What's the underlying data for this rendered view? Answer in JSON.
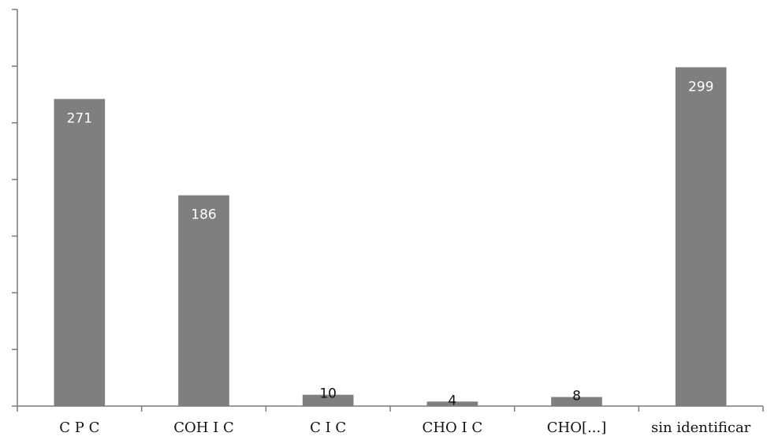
{
  "chart_data": {
    "type": "bar",
    "categories": [
      "C P C",
      "COH I C",
      "C I C",
      "CHO I C",
      "CHO[...]",
      "sin identificar"
    ],
    "values": [
      271,
      186,
      10,
      4,
      8,
      299
    ],
    "data_labels": [
      "271",
      "186",
      "10",
      "4",
      "8",
      "299"
    ],
    "title": "",
    "xlabel": "",
    "ylabel": "",
    "ylim": [
      0,
      350
    ],
    "yticks_count": 7,
    "ytick_labels_shown": false,
    "grid": false,
    "bar_color": "#7f7f7f",
    "axis_color": "#7a7a7a"
  }
}
